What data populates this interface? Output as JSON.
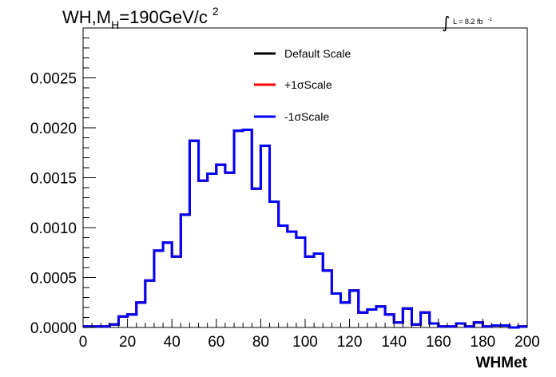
{
  "chart_data": {
    "type": "histogram",
    "title": {
      "main": "WH,M",
      "subscript": "H",
      "rest": "=190GeV/c",
      "superscript": "2"
    },
    "lumi": {
      "integral_sign": "∫",
      "text": "L = 8.2 fb",
      "superscript": "-1"
    },
    "xlabel": "WHMet",
    "ylabel": "",
    "xlim": [
      0,
      200
    ],
    "ylim": [
      0,
      0.003
    ],
    "x_ticks": [
      0,
      20,
      40,
      60,
      80,
      100,
      120,
      140,
      160,
      180,
      200
    ],
    "x_tick_labels": [
      "0",
      "20",
      "40",
      "60",
      "80",
      "100",
      "120",
      "140",
      "160",
      "180",
      "200"
    ],
    "y_ticks": [
      0,
      0.0005,
      0.001,
      0.0015,
      0.002,
      0.0025
    ],
    "y_tick_labels": [
      "0.0000",
      "0.0005",
      "0.0010",
      "0.0015",
      "0.0020",
      "0.0025"
    ],
    "bin_width": 4,
    "bin_edges_start": 0,
    "series": [
      {
        "name": "Default Scale",
        "color": "#000000",
        "values": [
          1e-05,
          1e-05,
          1e-05,
          3e-05,
          0.00011,
          0.00013,
          0.00025,
          0.00047,
          0.00077,
          0.00085,
          0.00071,
          0.00113,
          0.00187,
          0.00147,
          0.00154,
          0.00163,
          0.00155,
          0.00197,
          0.00198,
          0.00139,
          0.00182,
          0.00126,
          0.00102,
          0.00096,
          0.0009,
          0.00071,
          0.00074,
          0.00057,
          0.00034,
          0.00025,
          0.00037,
          0.00015,
          0.00018,
          0.00021,
          0.00013,
          5e-05,
          0.00019,
          3e-05,
          0.00015,
          4e-05,
          1e-05,
          1e-05,
          4e-05,
          1e-05,
          5e-05,
          1e-05,
          2e-05,
          2e-05,
          0.0,
          1e-05
        ]
      },
      {
        "name": "+1σScale",
        "color": "#ff0000",
        "values": [
          1e-05,
          1e-05,
          1e-05,
          3e-05,
          0.00011,
          0.00013,
          0.00025,
          0.00047,
          0.00077,
          0.00085,
          0.00071,
          0.00113,
          0.00187,
          0.00147,
          0.00154,
          0.00163,
          0.00155,
          0.00197,
          0.00198,
          0.00139,
          0.00182,
          0.00126,
          0.00102,
          0.00096,
          0.0009,
          0.00071,
          0.00074,
          0.00057,
          0.00034,
          0.00025,
          0.00037,
          0.00015,
          0.00018,
          0.00021,
          0.00013,
          5e-05,
          0.00019,
          3e-05,
          0.00015,
          4e-05,
          1e-05,
          1e-05,
          4e-05,
          1e-05,
          5e-05,
          1e-05,
          2e-05,
          2e-05,
          0.0,
          1e-05
        ]
      },
      {
        "name": "-1σScale",
        "color": "#0000ff",
        "values": [
          1e-05,
          1e-05,
          1e-05,
          3e-05,
          0.00011,
          0.00013,
          0.00025,
          0.00047,
          0.00077,
          0.00085,
          0.00071,
          0.00113,
          0.00187,
          0.00147,
          0.00154,
          0.00163,
          0.00155,
          0.00197,
          0.00198,
          0.00139,
          0.00182,
          0.00126,
          0.00102,
          0.00096,
          0.0009,
          0.00071,
          0.00074,
          0.00057,
          0.00034,
          0.00025,
          0.00037,
          0.00015,
          0.00018,
          0.00021,
          0.00013,
          5e-05,
          0.00019,
          3e-05,
          0.00015,
          4e-05,
          1e-05,
          1e-05,
          4e-05,
          1e-05,
          5e-05,
          1e-05,
          2e-05,
          2e-05,
          0.0,
          1e-05
        ]
      }
    ],
    "legend_placement": "top-center",
    "grid": false
  }
}
